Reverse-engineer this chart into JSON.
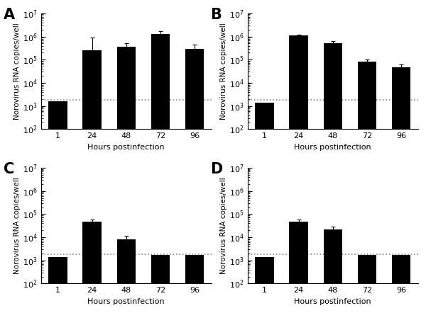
{
  "panels": [
    "A",
    "B",
    "C",
    "D"
  ],
  "x_labels": [
    "1",
    "24",
    "48",
    "72",
    "96"
  ],
  "x_positions": [
    1,
    2,
    3,
    4,
    5
  ],
  "ylabel": "Norovirus RNA copies/well",
  "xlabel": "Hours postinfection",
  "ylim_low": 100,
  "ylim_high": 10000000,
  "yticks": [
    100,
    1000,
    10000,
    100000,
    1000000,
    10000000
  ],
  "dashed_line_y": 1800,
  "bar_color": "#000000",
  "bar_width": 0.55,
  "panel_data": {
    "A": {
      "values": [
        1500,
        250000,
        350000,
        1300000,
        300000
      ],
      "errors_upper": [
        0,
        650000,
        150000,
        380000,
        160000
      ],
      "errors_lower": [
        0,
        130000,
        90000,
        260000,
        110000
      ]
    },
    "B": {
      "values": [
        1300,
        1100000,
        500000,
        80000,
        48000
      ],
      "errors_upper": [
        0,
        100000,
        120000,
        18000,
        12000
      ],
      "errors_lower": [
        0,
        80000,
        90000,
        14000,
        9000
      ]
    },
    "C": {
      "values": [
        1300,
        48000,
        8000,
        1600,
        1600
      ],
      "errors_upper": [
        0,
        11000,
        3500,
        0,
        0
      ],
      "errors_lower": [
        0,
        8000,
        2200,
        0,
        0
      ]
    },
    "D": {
      "values": [
        1300,
        48000,
        22000,
        1600,
        1600
      ],
      "errors_upper": [
        0,
        9000,
        6000,
        0,
        0
      ],
      "errors_lower": [
        0,
        6000,
        4000,
        0,
        0
      ]
    }
  },
  "label_fontsize": 8,
  "panel_label_fontsize": 15,
  "tick_fontsize": 8,
  "ylabel_fontsize": 7.5
}
